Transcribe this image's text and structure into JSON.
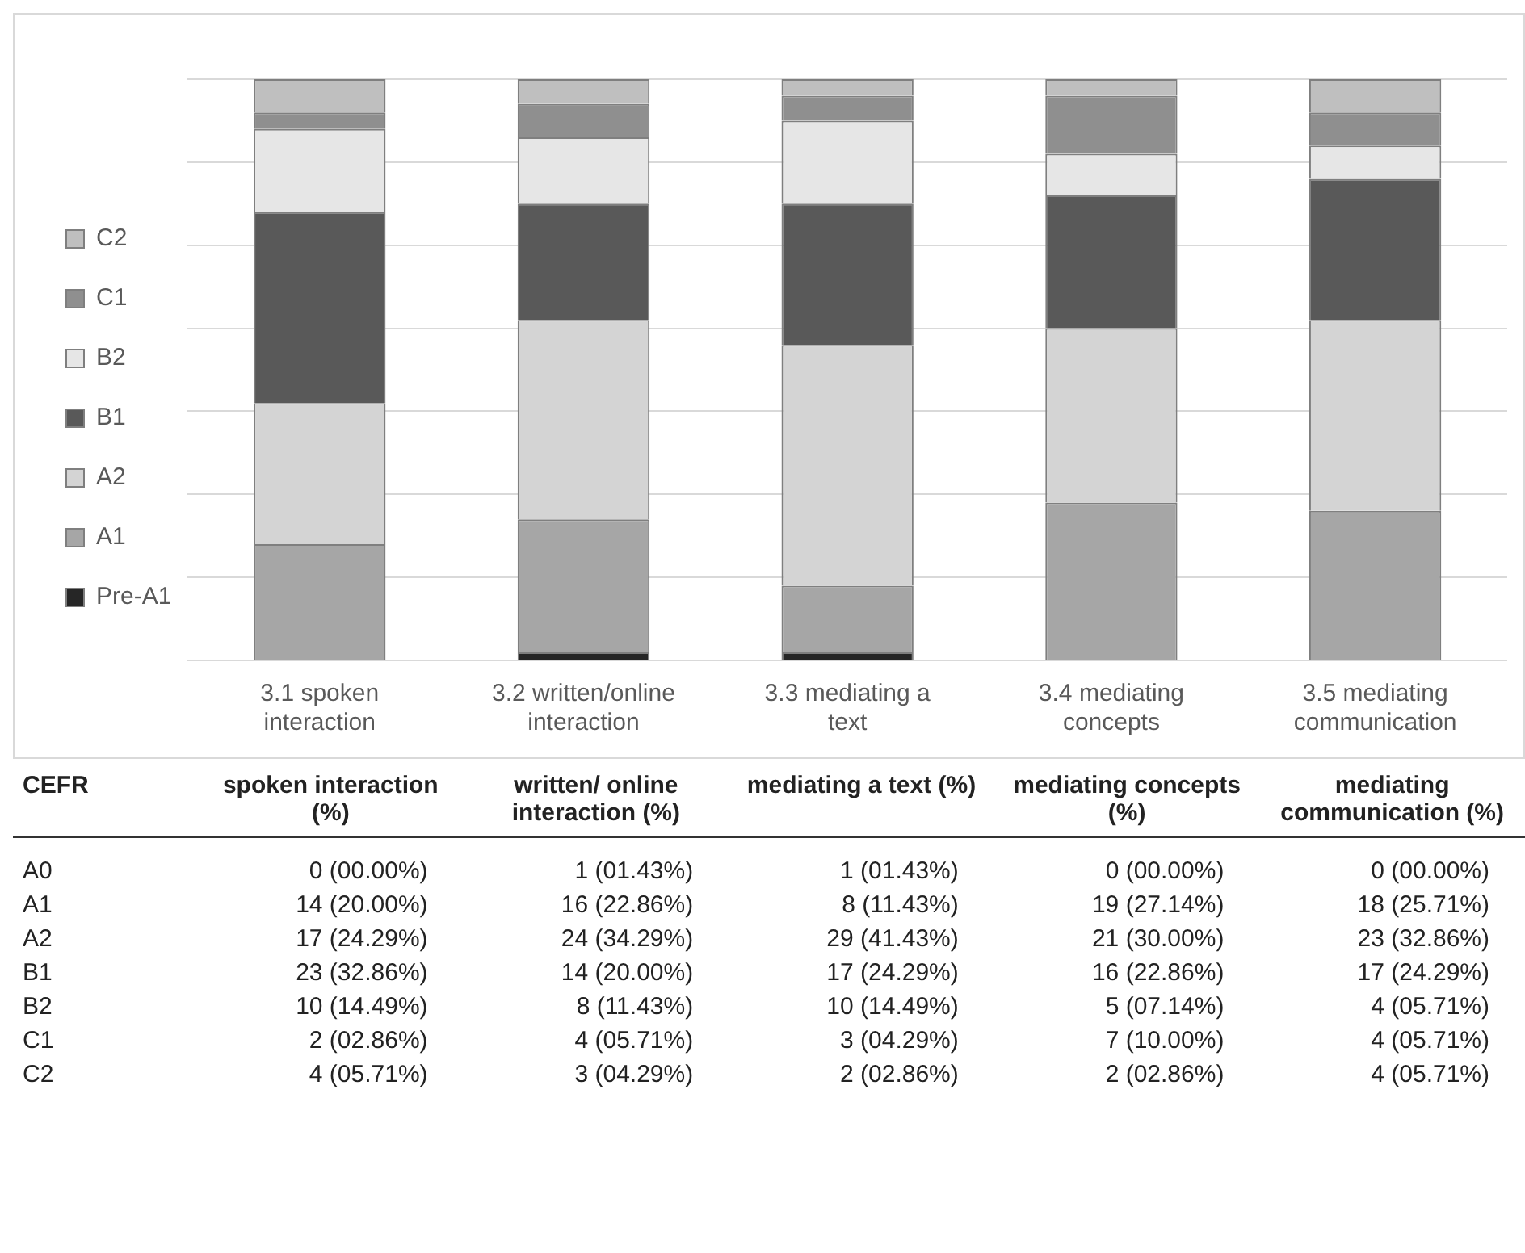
{
  "chart_data": {
    "type": "bar",
    "stacked": true,
    "categories": [
      "3.1 spoken interaction",
      "3.2 written/online interaction",
      "3.3 mediating a text",
      "3.4 mediating concepts",
      "3.5 mediating communication"
    ],
    "series": [
      {
        "name": "Pre-A1",
        "color": "#262626",
        "values": [
          0,
          1,
          1,
          0,
          0
        ],
        "value_labels": [
          "0 (00.00%)",
          "1 (01.43%)",
          "1 (01.43%)",
          "0 (00.00%)",
          "0 (00.00%)"
        ]
      },
      {
        "name": "A1",
        "color": "#a6a6a6",
        "values": [
          14,
          16,
          8,
          19,
          18
        ],
        "value_labels": [
          "14 (20.00%)",
          "16 (22.86%)",
          "8 (11.43%)",
          "19 (27.14%)",
          "18 (25.71%)"
        ]
      },
      {
        "name": "A2",
        "color": "#d4d4d4",
        "values": [
          17,
          24,
          29,
          21,
          23
        ],
        "value_labels": [
          "17 (24.29%)",
          "24 (34.29%)",
          "29 (41.43%)",
          "21 (30.00%)",
          "23 (32.86%)"
        ]
      },
      {
        "name": "B1",
        "color": "#595959",
        "values": [
          23,
          14,
          17,
          16,
          17
        ],
        "value_labels": [
          "23 (32.86%)",
          "14 (20.00%)",
          "17 (24.29%)",
          "16 (22.86%)",
          "17 (24.29%)"
        ]
      },
      {
        "name": "B2",
        "color": "#e6e6e6",
        "values": [
          10,
          8,
          10,
          5,
          4
        ],
        "value_labels": [
          "10 (14.49%)",
          "8 (11.43%)",
          "10 (14.49%)",
          "5 (07.14%)",
          "4 (05.71%)"
        ]
      },
      {
        "name": "C1",
        "color": "#8f8f8f",
        "values": [
          2,
          4,
          3,
          7,
          4
        ],
        "value_labels": [
          "2 (02.86%)",
          "4 (05.71%)",
          "3 (04.29%)",
          "7 (10.00%)",
          "4 (05.71%)"
        ]
      },
      {
        "name": "C2",
        "color": "#bfbfbf",
        "values": [
          4,
          3,
          2,
          2,
          4
        ],
        "value_labels": [
          "4 (05.71%)",
          "3 (04.29%)",
          "2 (02.86%)",
          "2 (02.86%)",
          "4 (05.71%)"
        ]
      }
    ],
    "ylim": [
      0,
      70
    ],
    "tick_labels": "x",
    "grid": "y",
    "legend": "left",
    "annotations": [
      "CEFR",
      "spoken interaction (%)",
      "written/ online interaction (%)",
      "mediating a text (%)",
      "mediating concepts (%)",
      "mediating communication (%)",
      "A0",
      "A1",
      "A2",
      "B1",
      "B2",
      "C1",
      "C2"
    ]
  }
}
